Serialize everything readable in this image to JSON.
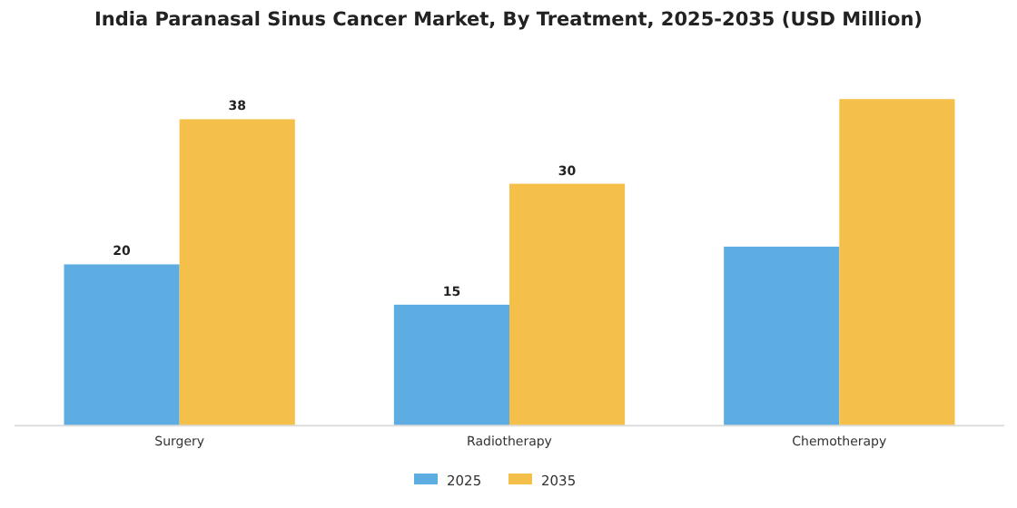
{
  "chart_data": {
    "type": "bar",
    "title": "India Paranasal Sinus Cancer Market, By Treatment, 2025-2035 (USD Million)",
    "categories": [
      "Surgery",
      "Radiotherapy",
      "Chemotherapy"
    ],
    "series": [
      {
        "name": "2025",
        "color": "#5dade2",
        "values": [
          20,
          15,
          22.2
        ],
        "value_labels": [
          "20",
          "15",
          null
        ]
      },
      {
        "name": "2035",
        "color": "#f5c04a",
        "values": [
          38,
          30,
          40.5
        ],
        "value_labels": [
          "38",
          "30",
          null
        ]
      }
    ],
    "legend": "bottom"
  }
}
